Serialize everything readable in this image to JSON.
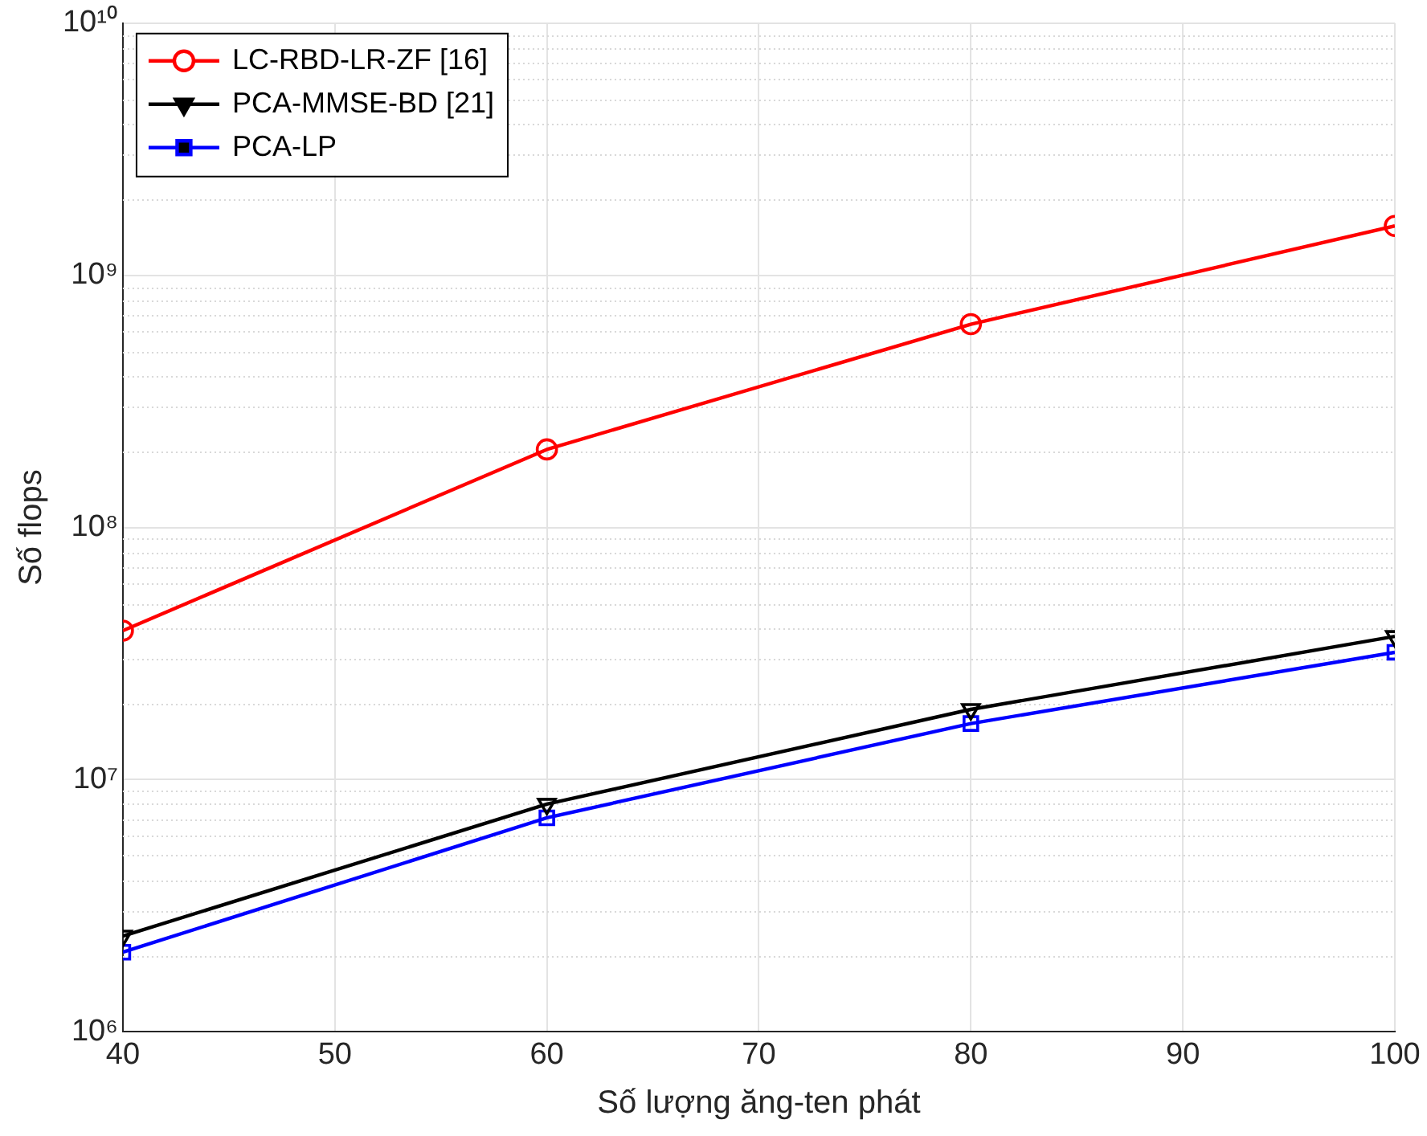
{
  "chart_data": {
    "type": "line",
    "xlabel": "Số lượng ăng-ten phát",
    "ylabel": "Số flops",
    "x": [
      40,
      60,
      80,
      100
    ],
    "series": [
      {
        "name": "LC-RBD-LR-ZF [16]",
        "color": "#ff0000",
        "marker": "circle",
        "values": [
          39000000,
          204000000,
          640000000,
          1570000000
        ]
      },
      {
        "name": "PCA-MMSE-BD [21]",
        "color": "#000000",
        "marker": "triangle",
        "values": [
          2400000,
          8000000,
          19000000,
          37000000
        ]
      },
      {
        "name": "PCA-LP",
        "color": "#0000ff",
        "marker": "square",
        "values": [
          2070000,
          7060000,
          16700000,
          32000000
        ]
      }
    ],
    "log": "y",
    "xlim": [
      40,
      100
    ],
    "xticks": [
      40,
      50,
      60,
      70,
      80,
      90,
      100
    ],
    "ylim": [
      1000000,
      10000000000
    ],
    "yticks": [
      {
        "value": 1000000,
        "label": "10⁶"
      },
      {
        "value": 10000000,
        "label": "10⁷"
      },
      {
        "value": 100000000,
        "label": "10⁸"
      },
      {
        "value": 1000000000,
        "label": "10⁹"
      },
      {
        "value": 10000000000,
        "label": "10¹⁰"
      }
    ],
    "grid": true,
    "legend": "top left"
  }
}
